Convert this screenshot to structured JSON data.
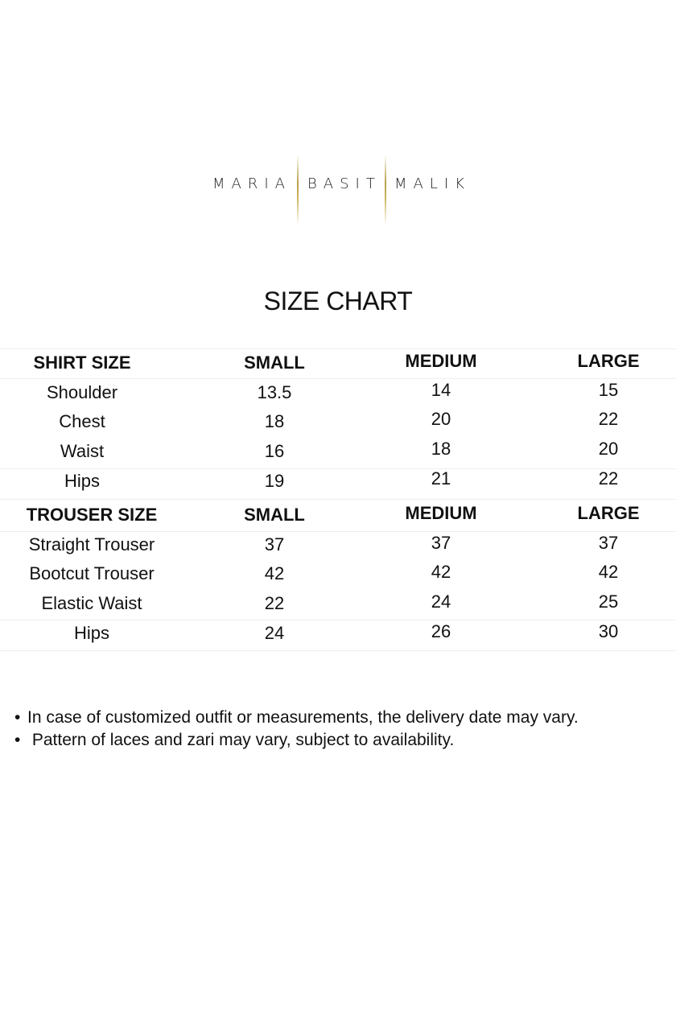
{
  "logo": {
    "words": [
      "MARIA",
      "BASIT",
      "MALIK"
    ],
    "accent_color": "#b8a04a"
  },
  "title": "SIZE CHART",
  "shirt": {
    "headers": [
      "SHIRT SIZE",
      "SMALL",
      "MEDIUM",
      "LARGE"
    ],
    "rows": [
      [
        "Shoulder",
        "13.5",
        "14",
        "15"
      ],
      [
        "Chest",
        "18",
        "20",
        "22"
      ],
      [
        "Waist",
        "16",
        "18",
        "20"
      ],
      [
        "Hips",
        "19",
        "21",
        "22"
      ]
    ]
  },
  "trouser": {
    "headers": [
      "TROUSER SIZE",
      "SMALL",
      "MEDIUM",
      "LARGE"
    ],
    "rows": [
      [
        "Straight Trouser",
        "37",
        "37",
        "37"
      ],
      [
        "Bootcut Trouser",
        "42",
        "42",
        "42"
      ],
      [
        "Elastic Waist",
        "22",
        "24",
        "25"
      ],
      [
        "Hips",
        "24",
        "26",
        "30"
      ]
    ]
  },
  "notes": [
    "In case of customized outfit or measurements, the delivery date may vary.",
    " Pattern of laces and zari may vary, subject to availability."
  ]
}
